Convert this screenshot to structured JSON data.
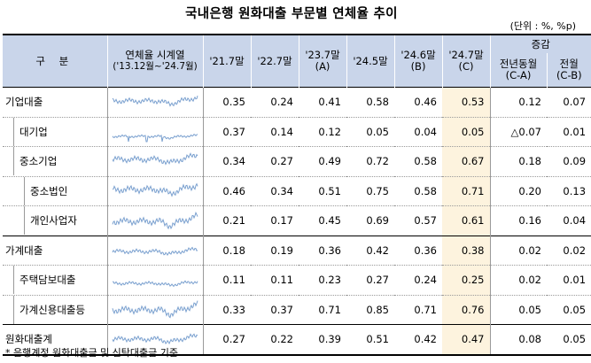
{
  "title": "국내은행 원화대출 부문별 연체율 추이",
  "unit": "(단위 : %, %p)",
  "header": {
    "gubun": "구  분",
    "series_line1": "연체율 시계열",
    "series_line2": "('13.12월~'24.7월)",
    "c1": "'21.7말",
    "c2": "'22.7말",
    "c3_l1": "'23.7말",
    "c3_l2": "(A)",
    "c4": "'24.5말",
    "c5_l1": "'24.6말",
    "c5_l2": "(B)",
    "c6_l1": "'24.7말",
    "c6_l2": "(C)",
    "change": "증감",
    "yoy_l1": "전년동월",
    "yoy_l2": "(C-A)",
    "mom_l1": "전월",
    "mom_l2": "(C-B)"
  },
  "rows": [
    {
      "label": "기업대출",
      "values": [
        "0.35",
        "0.24",
        "0.41",
        "0.58",
        "0.46",
        "0.53",
        "0.12",
        "0.07"
      ]
    },
    {
      "label": "대기업",
      "values": [
        "0.37",
        "0.14",
        "0.12",
        "0.05",
        "0.04",
        "0.05",
        "△0.07",
        "0.01"
      ]
    },
    {
      "label": "중소기업",
      "values": [
        "0.34",
        "0.27",
        "0.49",
        "0.72",
        "0.58",
        "0.67",
        "0.18",
        "0.09"
      ]
    },
    {
      "label": "중소법인",
      "values": [
        "0.46",
        "0.34",
        "0.51",
        "0.75",
        "0.58",
        "0.71",
        "0.20",
        "0.13"
      ]
    },
    {
      "label": "개인사업자",
      "values": [
        "0.21",
        "0.17",
        "0.45",
        "0.69",
        "0.57",
        "0.61",
        "0.16",
        "0.04"
      ]
    },
    {
      "label": "가계대출",
      "values": [
        "0.18",
        "0.19",
        "0.36",
        "0.42",
        "0.36",
        "0.38",
        "0.02",
        "0.02"
      ]
    },
    {
      "label": "주택담보대출",
      "values": [
        "0.11",
        "0.11",
        "0.23",
        "0.27",
        "0.24",
        "0.25",
        "0.02",
        "0.01"
      ]
    },
    {
      "label": "가계신용대출등",
      "values": [
        "0.33",
        "0.37",
        "0.71",
        "0.85",
        "0.71",
        "0.76",
        "0.05",
        "0.05"
      ]
    },
    {
      "label": "원화대출계",
      "values": [
        "0.27",
        "0.22",
        "0.39",
        "0.51",
        "0.42",
        "0.47",
        "0.08",
        "0.05"
      ]
    }
  ],
  "note": "* 은행계정 원화대출금 및 신탁대출금 기준",
  "colors": {
    "header_bg": "#c9d5ea",
    "highlight_col": "#fdf3de",
    "sparkline": "#7aa0cf"
  }
}
